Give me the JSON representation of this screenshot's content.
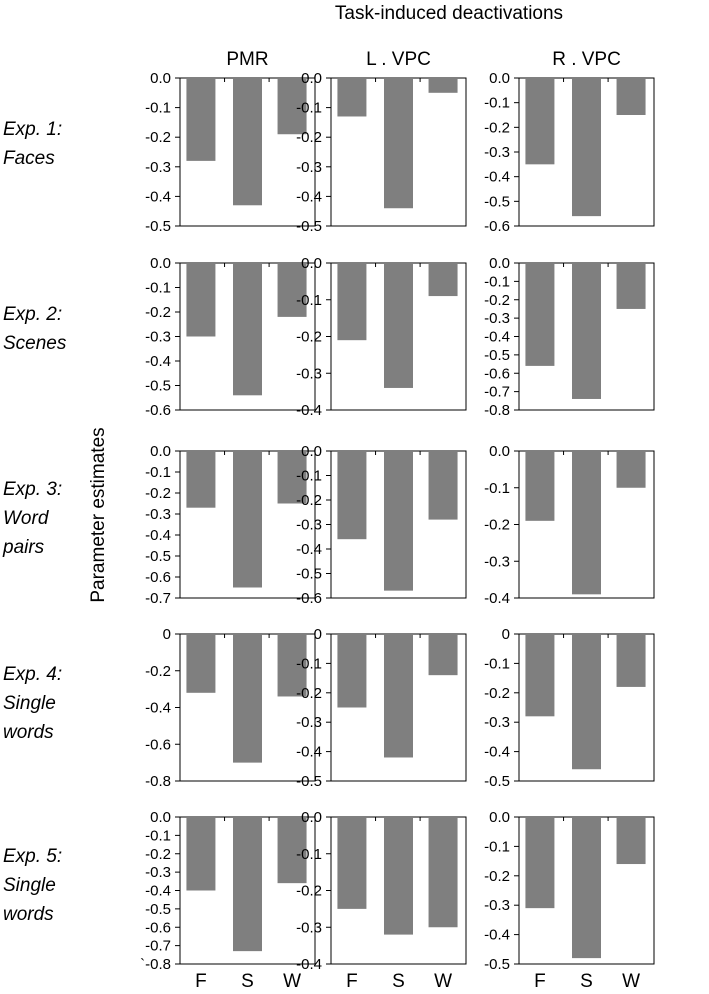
{
  "title": "Task-induced deactivations",
  "ylabel": "Parameter estimates",
  "columns": [
    "PMR",
    "L . VPC",
    "R . VPC"
  ],
  "rows": [
    [
      "Exp. 1:",
      "Faces"
    ],
    [
      "Exp. 2:",
      "Scenes"
    ],
    [
      "Exp. 3:",
      "Word",
      "pairs"
    ],
    [
      "Exp. 4:",
      "Single",
      "words"
    ],
    [
      "Exp. 5:",
      "Single",
      "words"
    ]
  ],
  "bar_color": "#7f7f7f",
  "chart_data": [
    {
      "type": "bar",
      "row": "Exp. 1: Faces",
      "column": "PMR",
      "categories": [
        "F",
        "S",
        "W"
      ],
      "values": [
        -0.28,
        -0.43,
        -0.19
      ],
      "ylim": [
        -0.5,
        0
      ],
      "yticks": [
        "0.0",
        "-0.1",
        "-0.2",
        "-0.3",
        "-0.4",
        "-0.5"
      ],
      "ytick_values": [
        0,
        -0.1,
        -0.2,
        -0.3,
        -0.4,
        -0.5
      ]
    },
    {
      "type": "bar",
      "row": "Exp. 1: Faces",
      "column": "L . VPC",
      "categories": [
        "F",
        "S",
        "W"
      ],
      "values": [
        -0.13,
        -0.44,
        -0.05
      ],
      "ylim": [
        -0.5,
        0
      ],
      "yticks": [
        "0.0",
        "-0.1",
        "-0.2",
        "-0.3",
        "-0.4",
        "-0.5"
      ],
      "ytick_values": [
        0,
        -0.1,
        -0.2,
        -0.3,
        -0.4,
        -0.5
      ]
    },
    {
      "type": "bar",
      "row": "Exp. 1: Faces",
      "column": "R . VPC",
      "categories": [
        "F",
        "S",
        "W"
      ],
      "values": [
        -0.35,
        -0.56,
        -0.15
      ],
      "ylim": [
        -0.6,
        0
      ],
      "yticks": [
        "0.0",
        "-0.1",
        "-0.2",
        "-0.3",
        "-0.4",
        "-0.5",
        "-0.6"
      ],
      "ytick_values": [
        0,
        -0.1,
        -0.2,
        -0.3,
        -0.4,
        -0.5,
        -0.6
      ]
    },
    {
      "type": "bar",
      "row": "Exp. 2: Scenes",
      "column": "PMR",
      "categories": [
        "F",
        "S",
        "W"
      ],
      "values": [
        -0.3,
        -0.54,
        -0.22
      ],
      "ylim": [
        -0.6,
        0
      ],
      "yticks": [
        "0.0",
        "-0.1",
        "-0.2",
        "-0.3",
        "-0.4",
        "-0.5",
        "-0.6"
      ],
      "ytick_values": [
        0,
        -0.1,
        -0.2,
        -0.3,
        -0.4,
        -0.5,
        -0.6
      ]
    },
    {
      "type": "bar",
      "row": "Exp. 2: Scenes",
      "column": "L . VPC",
      "categories": [
        "F",
        "S",
        "W"
      ],
      "values": [
        -0.21,
        -0.34,
        -0.09
      ],
      "ylim": [
        -0.4,
        0
      ],
      "yticks": [
        "0.0",
        "-0.1",
        "-0.2",
        "-0.3",
        "-0.4"
      ],
      "ytick_values": [
        0,
        -0.1,
        -0.2,
        -0.3,
        -0.4
      ]
    },
    {
      "type": "bar",
      "row": "Exp. 2: Scenes",
      "column": "R . VPC",
      "categories": [
        "F",
        "S",
        "W"
      ],
      "values": [
        -0.56,
        -0.74,
        -0.25
      ],
      "ylim": [
        -0.8,
        0
      ],
      "yticks": [
        "0.0",
        "-0.1",
        "-0.2",
        "-0.3",
        "-0.4",
        "-0.5",
        "-0.6",
        "-0.7",
        "-0.8"
      ],
      "ytick_values": [
        0,
        -0.1,
        -0.2,
        -0.3,
        -0.4,
        -0.5,
        -0.6,
        -0.7,
        -0.8
      ]
    },
    {
      "type": "bar",
      "row": "Exp. 3: Word pairs",
      "column": "PMR",
      "categories": [
        "F",
        "S",
        "W"
      ],
      "values": [
        -0.27,
        -0.65,
        -0.25
      ],
      "ylim": [
        -0.7,
        0
      ],
      "yticks": [
        "0.0",
        "-0.1",
        "-0.2",
        "-0.3",
        "-0.4",
        "-0.5",
        "-0.6",
        "-0.7"
      ],
      "ytick_values": [
        0,
        -0.1,
        -0.2,
        -0.3,
        -0.4,
        -0.5,
        -0.6,
        -0.7
      ]
    },
    {
      "type": "bar",
      "row": "Exp. 3: Word pairs",
      "column": "L . VPC",
      "categories": [
        "F",
        "S",
        "W"
      ],
      "values": [
        -0.36,
        -0.57,
        -0.28
      ],
      "ylim": [
        -0.6,
        0
      ],
      "yticks": [
        "0.0",
        "-0.1",
        "-0.2",
        "-0.3",
        "-0.4",
        "-0.5",
        "-0.6"
      ],
      "ytick_values": [
        0,
        -0.1,
        -0.2,
        -0.3,
        -0.4,
        -0.5,
        -0.6
      ]
    },
    {
      "type": "bar",
      "row": "Exp. 3: Word pairs",
      "column": "R . VPC",
      "categories": [
        "F",
        "S",
        "W"
      ],
      "values": [
        -0.19,
        -0.39,
        -0.1
      ],
      "ylim": [
        -0.4,
        0
      ],
      "yticks": [
        "0.0",
        "-0.1",
        "-0.2",
        "-0.3",
        "-0.4"
      ],
      "ytick_values": [
        0,
        -0.1,
        -0.2,
        -0.3,
        -0.4
      ]
    },
    {
      "type": "bar",
      "row": "Exp. 4: Single words",
      "column": "PMR",
      "categories": [
        "F",
        "S",
        "W"
      ],
      "values": [
        -0.32,
        -0.7,
        -0.34
      ],
      "ylim": [
        -0.8,
        0
      ],
      "yticks": [
        "0",
        "-0.2",
        "-0.4",
        "-0.6",
        "-0.8"
      ],
      "ytick_values": [
        0,
        -0.2,
        -0.4,
        -0.6,
        -0.8
      ]
    },
    {
      "type": "bar",
      "row": "Exp. 4: Single words",
      "column": "L . VPC",
      "categories": [
        "F",
        "S",
        "W"
      ],
      "values": [
        -0.25,
        -0.42,
        -0.14
      ],
      "ylim": [
        -0.5,
        0
      ],
      "yticks": [
        "0",
        "-0.1",
        "-0.2",
        "-0.3",
        "-0.4",
        "-0.5"
      ],
      "ytick_values": [
        0,
        -0.1,
        -0.2,
        -0.3,
        -0.4,
        -0.5
      ]
    },
    {
      "type": "bar",
      "row": "Exp. 4: Single words",
      "column": "R . VPC",
      "categories": [
        "F",
        "S",
        "W"
      ],
      "values": [
        -0.28,
        -0.46,
        -0.18
      ],
      "ylim": [
        -0.5,
        0
      ],
      "yticks": [
        "0",
        "-0.1",
        "-0.2",
        "-0.3",
        "-0.4",
        "-0.5"
      ],
      "ytick_values": [
        0,
        -0.1,
        -0.2,
        -0.3,
        -0.4,
        -0.5
      ]
    },
    {
      "type": "bar",
      "row": "Exp. 5: Single words",
      "column": "PMR",
      "categories": [
        "F",
        "S",
        "W"
      ],
      "values": [
        -0.4,
        -0.73,
        -0.36
      ],
      "ylim": [
        -0.8,
        0
      ],
      "yticks": [
        "0.0",
        "-0.1",
        "-0.2",
        "-0.3",
        "-0.4",
        "-0.5",
        "-0.6",
        "-0.7",
        "`-0.8"
      ],
      "ytick_values": [
        0,
        -0.1,
        -0.2,
        -0.3,
        -0.4,
        -0.5,
        -0.6,
        -0.7,
        -0.8
      ]
    },
    {
      "type": "bar",
      "row": "Exp. 5: Single words",
      "column": "L . VPC",
      "categories": [
        "F",
        "S",
        "W"
      ],
      "values": [
        -0.25,
        -0.32,
        -0.3
      ],
      "ylim": [
        -0.4,
        0
      ],
      "yticks": [
        "0.0",
        "-0.1",
        "-0.2",
        "-0.3",
        "-0.4"
      ],
      "ytick_values": [
        0,
        -0.1,
        -0.2,
        -0.3,
        -0.4
      ]
    },
    {
      "type": "bar",
      "row": "Exp. 5: Single words",
      "column": "R . VPC",
      "categories": [
        "F",
        "S",
        "W"
      ],
      "values": [
        -0.31,
        -0.48,
        -0.16
      ],
      "ylim": [
        -0.5,
        0
      ],
      "yticks": [
        "0.0",
        "-0.1",
        "-0.2",
        "-0.3",
        "-0.4",
        "-0.5"
      ],
      "ytick_values": [
        0,
        -0.1,
        -0.2,
        -0.3,
        -0.4,
        -0.5
      ]
    }
  ]
}
